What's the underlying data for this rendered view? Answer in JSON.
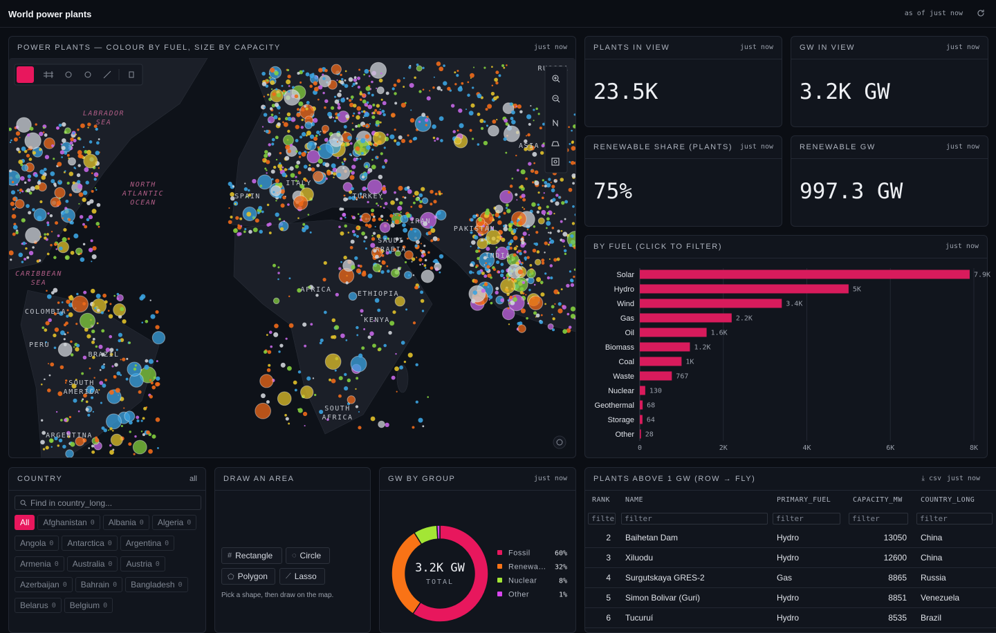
{
  "header": {
    "title": "World power plants",
    "status": "as of just now"
  },
  "map": {
    "title": "POWER PLANTS — COLOUR BY FUEL, SIZE BY CAPACITY",
    "updated": "just now",
    "labels": [
      "LABRADOR SEA",
      "NORTH ATLANTIC OCEAN",
      "CARIBBEAN SEA",
      "SPAIN",
      "ITALY",
      "TURKEY",
      "IRAN",
      "PAKISTAN",
      "SAUDI ARABIA",
      "INDIA",
      "ASIA",
      "RUSSIA",
      "AFRICA",
      "ETHIOPIA",
      "KENYA",
      "COLOMBIA",
      "PERU",
      "BRAZIL",
      "SOUTH AMERICA",
      "ARGENTINA",
      "SOUTH AFRICA"
    ]
  },
  "kpis": [
    {
      "title": "PLANTS IN VIEW",
      "updated": "just now",
      "value": "23.5K"
    },
    {
      "title": "GW IN VIEW",
      "updated": "just now",
      "value": "3.2K GW"
    },
    {
      "title": "RENEWABLE SHARE (PLANTS)",
      "updated": "just now",
      "value": "75%"
    },
    {
      "title": "RENEWABLE GW",
      "updated": "just now",
      "value": "997.3 GW"
    }
  ],
  "fuel_chart": {
    "type": "bar",
    "title": "BY FUEL (CLICK TO FILTER)",
    "updated": "just now",
    "categories": [
      "Solar",
      "Hydro",
      "Wind",
      "Gas",
      "Oil",
      "Biomass",
      "Coal",
      "Waste",
      "Nuclear",
      "Geothermal",
      "Storage",
      "Other"
    ],
    "values": [
      7900,
      5000,
      3400,
      2200,
      1600,
      1200,
      1000,
      767,
      130,
      68,
      64,
      28
    ],
    "value_labels": [
      "7.9K",
      "5K",
      "3.4K",
      "2.2K",
      "1.6K",
      "1.2K",
      "1K",
      "767",
      "130",
      "68",
      "64",
      "28"
    ],
    "color": "#d81b5c",
    "xlim": [
      0,
      8000
    ],
    "xticks": [
      0,
      {
        "value": 2000,
        "label": "2K"
      },
      {
        "value": 4000,
        "label": "4K"
      },
      {
        "value": 6000,
        "label": "6K"
      },
      {
        "value": 8000,
        "label": "8K"
      }
    ],
    "grid": true
  },
  "country": {
    "title": "COUNTRY",
    "all_label": "all",
    "search": "Find in country_long...",
    "all_chip": "All",
    "chips": [
      {
        "name": "Afghanistan",
        "count": 0
      },
      {
        "name": "Albania",
        "count": 0
      },
      {
        "name": "Algeria",
        "count": 0
      },
      {
        "name": "Angola",
        "count": 0
      },
      {
        "name": "Antarctica",
        "count": 0
      },
      {
        "name": "Argentina",
        "count": 0
      },
      {
        "name": "Armenia",
        "count": 0
      },
      {
        "name": "Australia",
        "count": 0
      },
      {
        "name": "Austria",
        "count": 0
      },
      {
        "name": "Azerbaijan",
        "count": 0
      },
      {
        "name": "Bahrain",
        "count": 0
      },
      {
        "name": "Bangladesh",
        "count": 0
      },
      {
        "name": "Belarus",
        "count": 0
      },
      {
        "name": "Belgium",
        "count": 0
      }
    ]
  },
  "draw": {
    "title": "DRAW AN AREA",
    "tools": [
      "Rectangle",
      "Circle",
      "Polygon",
      "Lasso"
    ],
    "hint": "Pick a shape, then draw on the map."
  },
  "group_chart": {
    "type": "pie",
    "title": "GW BY GROUP",
    "updated": "just now",
    "center_value": "3.2K GW",
    "center_label": "TOTAL",
    "categories": [
      "Fossil",
      "Renewa…",
      "Nuclear",
      "Other"
    ],
    "values": [
      60,
      32,
      8,
      1
    ],
    "value_labels": [
      "60%",
      "32%",
      "8%",
      "1%"
    ],
    "colors": [
      "#e8175d",
      "#f97316",
      "#a3e635",
      "#d946ef"
    ]
  },
  "table": {
    "title": "PLANTS ABOVE 1 GW (ROW → FLY)",
    "csv": "csv",
    "updated": "just now",
    "columns": [
      "RANK",
      "NAME",
      "PRIMARY_FUEL",
      "CAPACITY_MW",
      "COUNTRY_LONG"
    ],
    "filter": "filter",
    "rows": [
      [
        2,
        "Baihetan Dam",
        "Hydro",
        13050,
        "China"
      ],
      [
        3,
        "Xiluodu",
        "Hydro",
        12600,
        "China"
      ],
      [
        4,
        "Surgutskaya GRES-2",
        "Gas",
        8865,
        "Russia"
      ],
      [
        5,
        "Simon Bolivar (Guri)",
        "Hydro",
        8851,
        "Venezuela"
      ],
      [
        6,
        "Tucuruí",
        "Hydro",
        8535,
        "Brazil"
      ]
    ]
  }
}
